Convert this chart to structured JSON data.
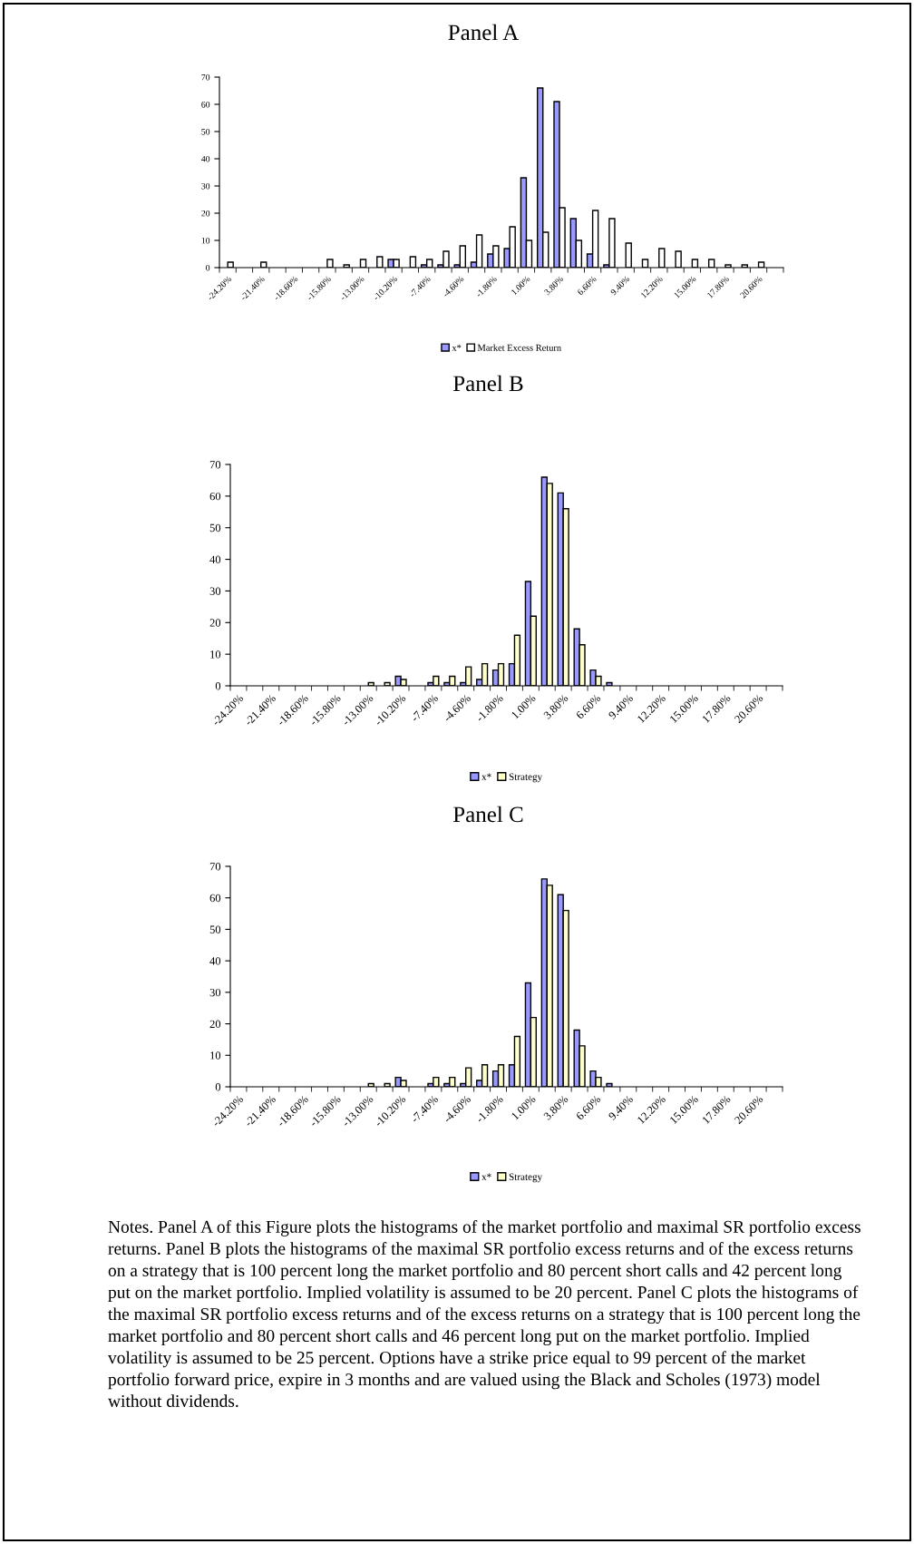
{
  "chart_data": [
    {
      "type": "bar",
      "title": "Panel A",
      "categories": [
        "-24.20%",
        null,
        "-21.40%",
        null,
        "-18.60%",
        null,
        "-15.80%",
        null,
        "-13.00%",
        null,
        "-10.20%",
        null,
        "-7.40%",
        null,
        "-4.60%",
        null,
        "-1.80%",
        null,
        "1.00%",
        null,
        "3.80%",
        null,
        "6.60%",
        null,
        "9.40%",
        null,
        "12.20%",
        null,
        "15.00%",
        null,
        "17.80%",
        null,
        "20.60%",
        null
      ],
      "series": [
        {
          "name": "x*",
          "color": "#9999ff",
          "values": [
            0,
            0,
            0,
            0,
            0,
            0,
            0,
            0,
            0,
            0,
            3,
            0,
            1,
            1,
            1,
            2,
            5,
            7,
            33,
            66,
            61,
            18,
            5,
            1,
            0,
            0,
            0,
            0,
            0,
            0,
            0,
            0,
            0,
            0
          ]
        },
        {
          "name": "Market Excess Return",
          "color": "#ffffff",
          "values": [
            2,
            0,
            2,
            0,
            0,
            0,
            3,
            1,
            3,
            4,
            3,
            4,
            3,
            6,
            8,
            12,
            8,
            15,
            10,
            13,
            22,
            10,
            21,
            18,
            9,
            3,
            7,
            6,
            3,
            3,
            1,
            1,
            2,
            0
          ]
        }
      ],
      "ylim": [
        0,
        70
      ],
      "yticks": [
        0,
        10,
        20,
        30,
        40,
        50,
        60,
        70
      ],
      "grid": false,
      "legend": "bottom"
    },
    {
      "type": "bar",
      "title": "Panel B",
      "categories": [
        "-24.20%",
        null,
        "-21.40%",
        null,
        "-18.60%",
        null,
        "-15.80%",
        null,
        "-13.00%",
        null,
        "-10.20%",
        null,
        "-7.40%",
        null,
        "-4.60%",
        null,
        "-1.80%",
        null,
        "1.00%",
        null,
        "3.80%",
        null,
        "6.60%",
        null,
        "9.40%",
        null,
        "12.20%",
        null,
        "15.00%",
        null,
        "17.80%",
        null,
        "20.60%",
        null
      ],
      "series": [
        {
          "name": "x*",
          "color": "#9999ff",
          "values": [
            0,
            0,
            0,
            0,
            0,
            0,
            0,
            0,
            0,
            0,
            3,
            0,
            1,
            1,
            1,
            2,
            5,
            7,
            33,
            66,
            61,
            18,
            5,
            1,
            0,
            0,
            0,
            0,
            0,
            0,
            0,
            0,
            0,
            0
          ]
        },
        {
          "name": "Strategy",
          "color": "#ffffcc",
          "values": [
            0,
            0,
            0,
            0,
            0,
            0,
            0,
            0,
            1,
            1,
            2,
            0,
            3,
            3,
            6,
            7,
            7,
            16,
            22,
            64,
            56,
            13,
            3,
            0,
            0,
            0,
            0,
            0,
            0,
            0,
            0,
            0,
            0,
            0
          ]
        }
      ],
      "ylim": [
        0,
        70
      ],
      "yticks": [
        0,
        10,
        20,
        30,
        40,
        50,
        60,
        70
      ],
      "grid": false,
      "legend": "bottom"
    },
    {
      "type": "bar",
      "title": "Panel C",
      "categories": [
        "-24.20%",
        null,
        "-21.40%",
        null,
        "-18.60%",
        null,
        "-15.80%",
        null,
        "-13.00%",
        null,
        "-10.20%",
        null,
        "-7.40%",
        null,
        "-4.60%",
        null,
        "-1.80%",
        null,
        "1.00%",
        null,
        "3.80%",
        null,
        "6.60%",
        null,
        "9.40%",
        null,
        "12.20%",
        null,
        "15.00%",
        null,
        "17.80%",
        null,
        "20.60%",
        null
      ],
      "series": [
        {
          "name": "x*",
          "color": "#9999ff",
          "values": [
            0,
            0,
            0,
            0,
            0,
            0,
            0,
            0,
            0,
            0,
            3,
            0,
            1,
            1,
            1,
            2,
            5,
            7,
            33,
            66,
            61,
            18,
            5,
            1,
            0,
            0,
            0,
            0,
            0,
            0,
            0,
            0,
            0,
            0
          ]
        },
        {
          "name": "Strategy",
          "color": "#ffffcc",
          "values": [
            0,
            0,
            0,
            0,
            0,
            0,
            0,
            0,
            1,
            1,
            2,
            0,
            3,
            3,
            6,
            7,
            7,
            16,
            22,
            64,
            56,
            13,
            3,
            0,
            0,
            0,
            0,
            0,
            0,
            0,
            0,
            0,
            0,
            0
          ]
        }
      ],
      "ylim": [
        0,
        70
      ],
      "yticks": [
        0,
        10,
        20,
        30,
        40,
        50,
        60,
        70
      ],
      "grid": false,
      "legend": "bottom",
      "annotations": [
        "Notes. Panel A of this Figure plots the histograms of the market portfolio and maximal SR portfolio excess returns. Panel B plots the histograms of the maximal SR portfolio excess returns and of the excess returns on a strategy that is 100 percent long the market portfolio and 80 percent short calls and 42 percent long put on the market portfolio. Implied volatility is assumed to be 20 percent. Panel C plots the histograms of the maximal SR portfolio excess returns and of the excess returns on a strategy that is 100 percent long the market portfolio and 80 percent short calls and 46 percent long put on the market portfolio. Implied volatility is assumed to be 25 percent. Options have a strike price equal to 99 percent of the market portfolio forward price, expire in 3 months and are valued using the Black and Scholes (1973) model without dividends."
      ]
    }
  ]
}
